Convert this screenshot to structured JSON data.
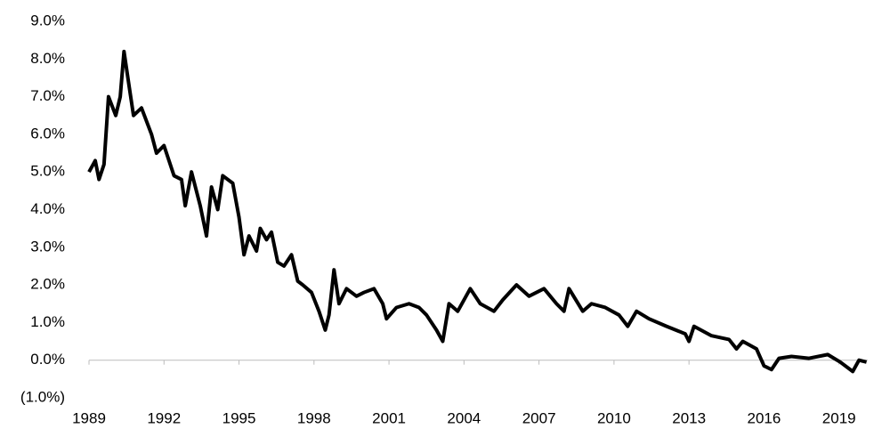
{
  "chart_data": {
    "type": "line",
    "x": [
      1989.0,
      1989.25,
      1989.4,
      1989.6,
      1989.78,
      1990.07,
      1990.25,
      1990.4,
      1990.6,
      1990.78,
      1991.1,
      1991.5,
      1991.7,
      1992.0,
      1992.4,
      1992.7,
      1992.85,
      1993.1,
      1993.45,
      1993.7,
      1993.9,
      1994.15,
      1994.35,
      1994.75,
      1995.0,
      1995.2,
      1995.4,
      1995.7,
      1995.85,
      1996.1,
      1996.3,
      1996.55,
      1996.8,
      1997.1,
      1997.35,
      1997.55,
      1997.9,
      1998.2,
      1998.45,
      1998.6,
      1998.8,
      1999.0,
      1999.3,
      1999.7,
      2000.0,
      2000.4,
      2000.75,
      2000.9,
      2001.3,
      2001.8,
      2002.2,
      2002.5,
      2002.9,
      2003.15,
      2003.4,
      2003.75,
      2004.25,
      2004.65,
      2005.2,
      2005.55,
      2006.1,
      2006.6,
      2007.2,
      2007.7,
      2008.0,
      2008.2,
      2008.75,
      2009.1,
      2009.65,
      2010.2,
      2010.55,
      2010.9,
      2011.4,
      2012.1,
      2012.85,
      2013.0,
      2013.2,
      2013.9,
      2014.6,
      2014.9,
      2015.15,
      2015.7,
      2016.0,
      2016.3,
      2016.6,
      2017.1,
      2017.8,
      2018.55,
      2019.05,
      2019.55,
      2019.8,
      2020.1
    ],
    "series": [
      {
        "color": "#000000",
        "values": [
          5.0,
          5.3,
          4.8,
          5.2,
          7.0,
          6.5,
          7.0,
          8.2,
          7.3,
          6.5,
          6.7,
          6.0,
          5.5,
          5.7,
          4.9,
          4.8,
          4.1,
          5.0,
          4.1,
          3.3,
          4.6,
          4.0,
          4.9,
          4.7,
          3.8,
          2.8,
          3.3,
          2.9,
          3.5,
          3.2,
          3.4,
          2.6,
          2.5,
          2.8,
          2.1,
          2.0,
          1.8,
          1.3,
          0.8,
          1.2,
          2.4,
          1.5,
          1.9,
          1.7,
          1.8,
          1.9,
          1.5,
          1.1,
          1.4,
          1.5,
          1.4,
          1.2,
          0.8,
          0.5,
          1.5,
          1.3,
          1.9,
          1.5,
          1.3,
          1.6,
          2.0,
          1.7,
          1.9,
          1.5,
          1.3,
          1.9,
          1.3,
          1.5,
          1.4,
          1.2,
          0.9,
          1.3,
          1.1,
          0.9,
          0.7,
          0.5,
          0.9,
          0.65,
          0.55,
          0.3,
          0.5,
          0.3,
          -0.15,
          -0.25,
          0.05,
          0.1,
          0.05,
          0.15,
          -0.05,
          -0.3,
          0.0,
          -0.05
        ]
      }
    ],
    "xlim": [
      1989,
      2020.15
    ],
    "xticks": [
      1989,
      1992,
      1995,
      1998,
      2001,
      2004,
      2007,
      2010,
      2013,
      2016,
      2019
    ],
    "ylim": [
      -1,
      9
    ],
    "yticks": [
      {
        "value": -1,
        "label": "(1.0%)"
      },
      {
        "value": 0,
        "label": "0.0%"
      },
      {
        "value": 1,
        "label": "1.0%"
      },
      {
        "value": 2,
        "label": "2.0%"
      },
      {
        "value": 3,
        "label": "3.0%"
      },
      {
        "value": 4,
        "label": "4.0%"
      },
      {
        "value": 5,
        "label": "5.0%"
      },
      {
        "value": 6,
        "label": "6.0%"
      },
      {
        "value": 7,
        "label": "7.0%"
      },
      {
        "value": 8,
        "label": "8.0%"
      },
      {
        "value": 9,
        "label": "9.0%"
      }
    ],
    "grid": false
  }
}
